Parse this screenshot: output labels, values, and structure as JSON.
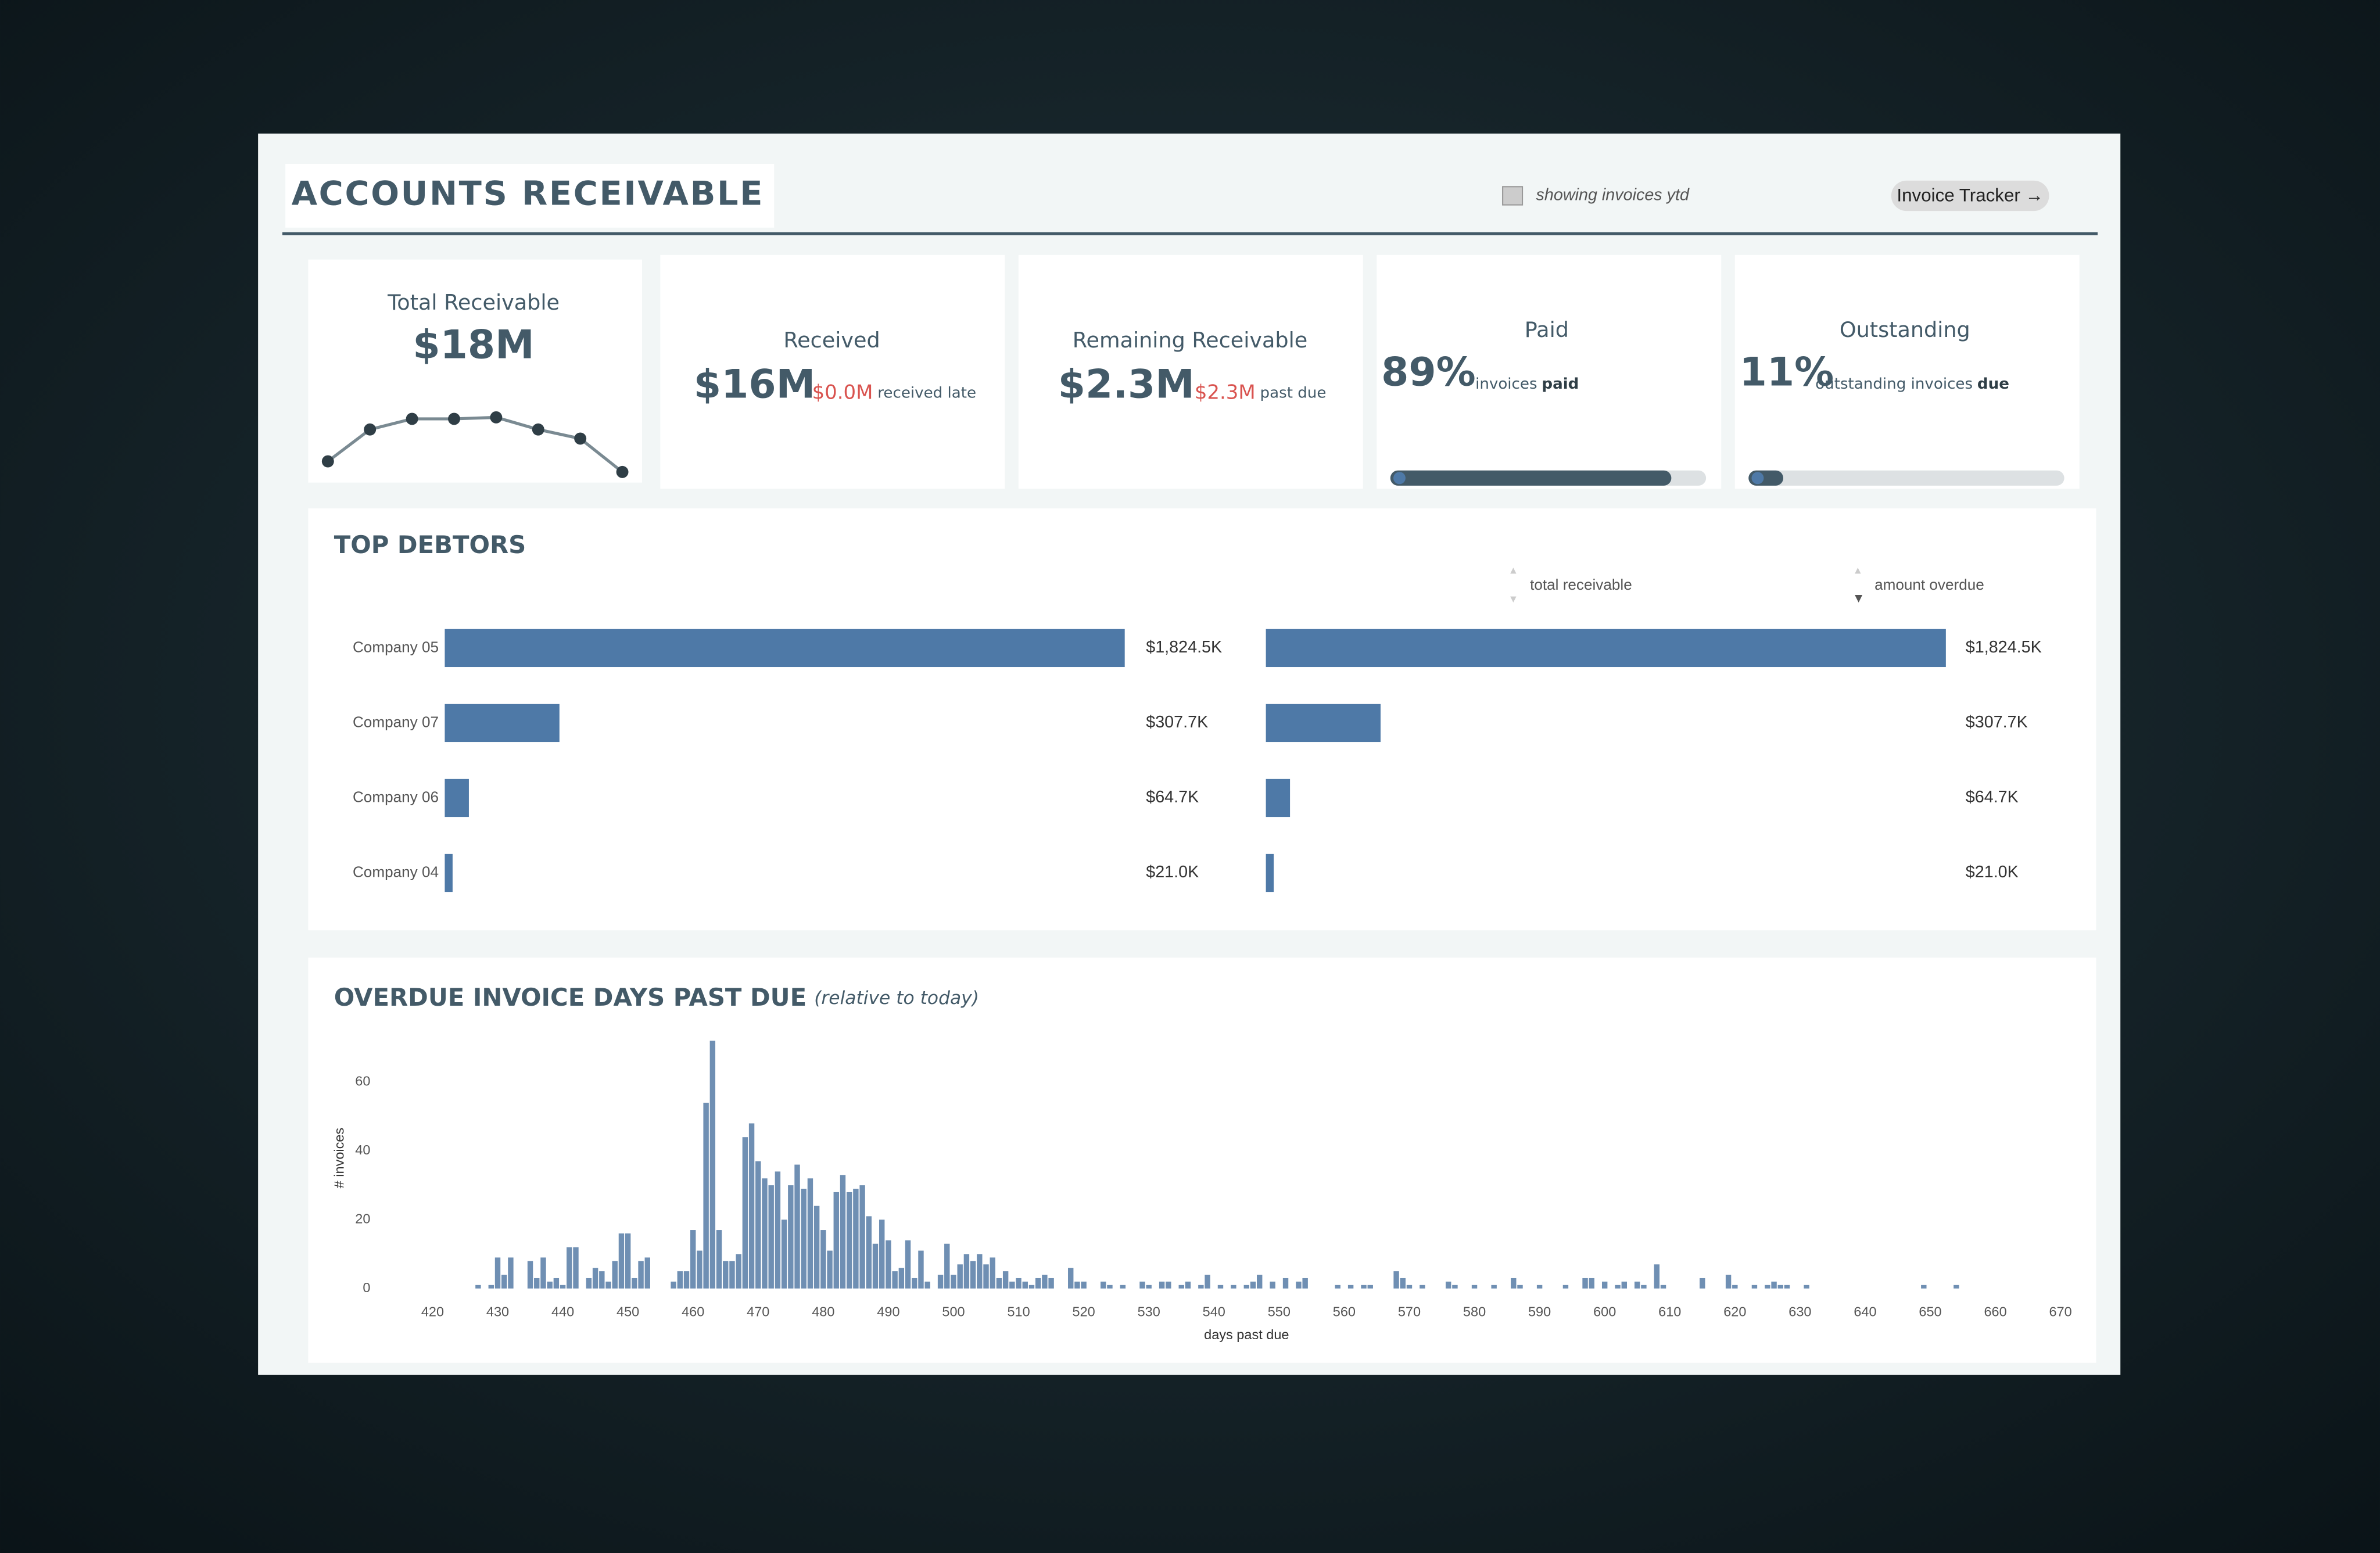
{
  "header": {
    "title": "ACCOUNTS RECEIVABLE",
    "filter_note": "showing invoices ytd",
    "button": "Invoice Tracker →"
  },
  "kpis": [
    {
      "title": "Received",
      "value": "$16M",
      "late_value": "$0.0M",
      "late_note": "received late"
    },
    {
      "title": "Remaining Receivable",
      "value": "$2.3M",
      "late_value": "$2.3M",
      "late_note": "past due"
    }
  ],
  "debtors_title": "TOP DEBTORS",
  "chart_data": [
    {
      "type": "sparkline",
      "title": "Total Receivable",
      "kpi": "$18M",
      "categories": [
        null,
        null,
        null,
        null,
        null,
        null,
        null,
        null
      ],
      "values": [
        16,
        37,
        44,
        44,
        45,
        37,
        31,
        9
      ],
      "color": "#2f3e46"
    },
    {
      "type": "progress",
      "title": "Paid",
      "values": [
        89
      ],
      "value_labels": [
        "89%"
      ],
      "note": "invoices",
      "note_strong": "paid",
      "xlim": [
        0,
        100
      ],
      "color": "#435a68"
    },
    {
      "type": "progress",
      "title": "Outstanding",
      "values": [
        11
      ],
      "value_labels": [
        "11%"
      ],
      "note": "outstanding invoices",
      "note_strong": "due",
      "xlim": [
        0,
        100
      ],
      "color": "#435a68"
    },
    {
      "type": "hbar",
      "title": "total receivable",
      "categories": [
        "Company 05",
        "Company 07",
        "Company 06",
        "Company 04"
      ],
      "values": [
        1824.5,
        307.7,
        64.7,
        21.0
      ],
      "value_labels": [
        "$1,824.5K",
        "$307.7K",
        "$64.7K",
        "$21.0K"
      ],
      "xlim": [
        0,
        1824.5
      ],
      "color": "#4e79a7"
    },
    {
      "type": "hbar",
      "title": "amount overdue",
      "values": [
        1824.5,
        307.7,
        64.7,
        21.0
      ],
      "value_labels": [
        "$1,824.5K",
        "$307.7K",
        "$64.7K",
        "$21.0K"
      ],
      "xlim": [
        0,
        1824.5
      ],
      "color": "#4e79a7"
    },
    {
      "type": "bar",
      "title": "OVERDUE INVOICE DAYS PAST DUE",
      "subtitle": "(relative to today)",
      "xlabel": "days past due",
      "ylabel": "# invoices",
      "color": "#6f8fb3",
      "x": [
        427,
        429,
        430,
        431,
        432,
        435,
        436,
        437,
        438,
        439,
        440,
        441,
        442,
        444,
        445,
        446,
        447,
        448,
        449,
        450,
        451,
        452,
        453,
        457,
        458,
        459,
        460,
        461,
        462,
        463,
        464,
        465,
        466,
        467,
        468,
        469,
        470,
        471,
        472,
        473,
        474,
        475,
        476,
        477,
        478,
        479,
        480,
        481,
        482,
        483,
        484,
        485,
        486,
        487,
        488,
        489,
        490,
        491,
        492,
        493,
        494,
        495,
        496,
        498,
        499,
        500,
        501,
        502,
        503,
        504,
        505,
        506,
        507,
        508,
        509,
        510,
        511,
        512,
        513,
        514,
        515,
        518,
        519,
        520,
        523,
        524,
        526,
        529,
        530,
        532,
        533,
        535,
        536,
        538,
        539,
        541,
        543,
        545,
        546,
        547,
        549,
        551,
        553,
        554,
        559,
        561,
        563,
        564,
        568,
        569,
        570,
        572,
        576,
        577,
        580,
        583,
        586,
        587,
        590,
        594,
        597,
        598,
        600,
        602,
        603,
        605,
        606,
        608,
        609,
        615,
        619,
        620,
        623,
        625,
        626,
        627,
        628,
        631,
        649,
        654
      ],
      "values": [
        1,
        1,
        9,
        4,
        9,
        8,
        3,
        9,
        2,
        3,
        1,
        12,
        12,
        3,
        6,
        5,
        2,
        8,
        16,
        16,
        3,
        8,
        9,
        2,
        5,
        5,
        17,
        11,
        54,
        72,
        17,
        8,
        8,
        10,
        44,
        48,
        37,
        32,
        30,
        34,
        20,
        30,
        36,
        29,
        32,
        24,
        17,
        11,
        28,
        33,
        28,
        29,
        30,
        21,
        13,
        20,
        14,
        5,
        6,
        14,
        3,
        11,
        2,
        4,
        13,
        4,
        7,
        10,
        8,
        10,
        7,
        9,
        3,
        5,
        2,
        3,
        2,
        1,
        3,
        4,
        3,
        6,
        2,
        2,
        2,
        1,
        1,
        2,
        1,
        2,
        2,
        1,
        2,
        1,
        4,
        1,
        1,
        1,
        2,
        4,
        2,
        3,
        2,
        3,
        1,
        1,
        1,
        1,
        5,
        3,
        1,
        1,
        2,
        1,
        1,
        1,
        3,
        1,
        1,
        1,
        3,
        3,
        2,
        1,
        2,
        2,
        1,
        7,
        1,
        3,
        4,
        1,
        1,
        1,
        2,
        1,
        1,
        1,
        1,
        1
      ],
      "xlim": [
        416,
        674
      ],
      "ylim": [
        0,
        75
      ],
      "xticks": [
        420,
        430,
        440,
        450,
        460,
        470,
        480,
        490,
        500,
        510,
        520,
        530,
        540,
        550,
        560,
        570,
        580,
        590,
        600,
        610,
        620,
        630,
        640,
        650,
        660,
        670
      ],
      "yticks": [
        0,
        20,
        40,
        60
      ]
    }
  ]
}
